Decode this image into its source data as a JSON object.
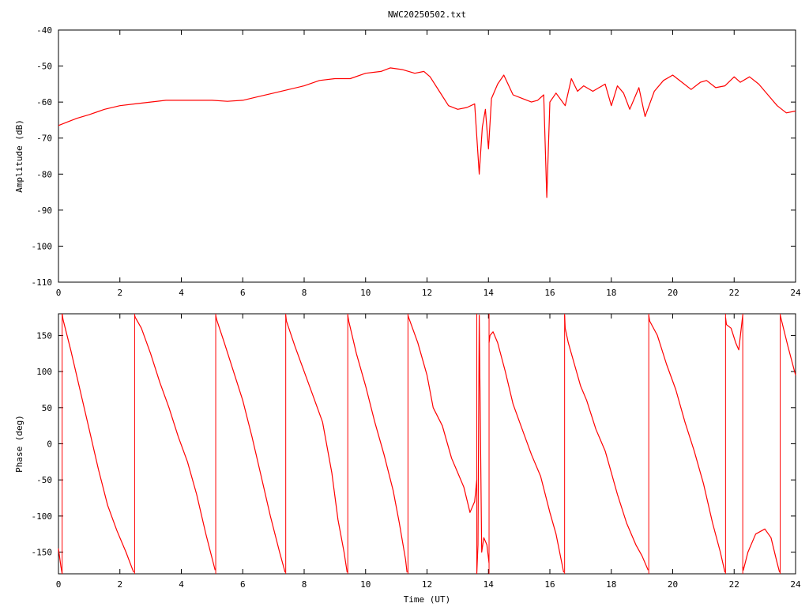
{
  "chart_data": [
    {
      "type": "line",
      "title": "NWC20250502.txt",
      "xlabel": "",
      "ylabel": "Amplitude (dB)",
      "xlim": [
        0,
        24
      ],
      "ylim": [
        -110,
        -40
      ],
      "x_ticks": [
        "0",
        "2",
        "4",
        "6",
        "8",
        "10",
        "12",
        "14",
        "16",
        "18",
        "20",
        "22",
        "24"
      ],
      "y_ticks": [
        "-40",
        "-50",
        "-60",
        "-70",
        "-80",
        "-90",
        "-100",
        "-110"
      ],
      "color": "#ff0000",
      "series": [
        {
          "x": [
            0,
            0.3,
            0.6,
            1.0,
            1.5,
            2.0,
            2.5,
            3.0,
            3.5,
            4.0,
            4.5,
            5.0,
            5.5,
            6.0,
            6.5,
            7.0,
            7.5,
            8.0,
            8.5,
            9.0,
            9.5,
            10.0,
            10.5,
            10.8,
            11.2,
            11.6,
            11.9,
            12.1,
            12.4,
            12.7,
            13.0,
            13.3,
            13.55,
            13.7,
            13.8,
            13.9,
            14.0,
            14.1,
            14.3,
            14.5,
            14.8,
            15.1,
            15.4,
            15.6,
            15.8,
            15.9,
            16.0,
            16.2,
            16.5,
            16.7,
            16.9,
            17.1,
            17.4,
            17.6,
            17.8,
            18.0,
            18.2,
            18.4,
            18.6,
            18.9,
            19.1,
            19.4,
            19.7,
            20.0,
            20.3,
            20.6,
            20.9,
            21.1,
            21.4,
            21.7,
            22.0,
            22.2,
            22.5,
            22.8,
            23.1,
            23.4,
            23.7,
            24.0
          ],
          "y": [
            -66.5,
            -65.5,
            -64.5,
            -63.5,
            -62,
            -61,
            -60.5,
            -60,
            -59.5,
            -59.5,
            -59.5,
            -59.5,
            -59.8,
            -59.5,
            -58.5,
            -57.5,
            -56.5,
            -55.5,
            -54,
            -53.5,
            -53.5,
            -52,
            -51.5,
            -50.5,
            -51,
            -52,
            -51.5,
            -53,
            -57,
            -61,
            -62,
            -61.5,
            -60.5,
            -80,
            -67,
            -62,
            -73,
            -59,
            -55,
            -52.5,
            -58,
            -59,
            -60,
            -59.5,
            -58,
            -86.5,
            -60,
            -57.5,
            -61,
            -53.5,
            -57,
            -55.5,
            -57,
            -56,
            -55,
            -61,
            -55.5,
            -57.5,
            -62,
            -56,
            -64,
            -57,
            -54,
            -52.5,
            -54.5,
            -56.5,
            -54.5,
            -54,
            -56,
            -55.5,
            -53,
            -54.5,
            -53,
            -55,
            -58,
            -61,
            -63,
            -62.5
          ]
        }
      ]
    },
    {
      "type": "line",
      "title": "",
      "xlabel": "Time (UT)",
      "ylabel": "Phase (deg)",
      "xlim": [
        0,
        24
      ],
      "ylim": [
        -180,
        180
      ],
      "x_ticks": [
        "0",
        "2",
        "4",
        "6",
        "8",
        "10",
        "12",
        "14",
        "16",
        "18",
        "20",
        "22",
        "24"
      ],
      "y_ticks": [
        "150",
        "100",
        "50",
        "0",
        "-50",
        "-100",
        "-150"
      ],
      "color": "#ff0000",
      "series": [
        {
          "x": [
            0.0,
            0.08,
            0.12
          ],
          "y": [
            -145,
            -170,
            -180
          ]
        },
        {
          "x": [
            0.12,
            0.15,
            0.4,
            0.7,
            1.0,
            1.3,
            1.6,
            1.9,
            2.2,
            2.45
          ],
          "y": [
            180,
            172,
            130,
            75,
            20,
            -35,
            -85,
            -120,
            -150,
            -178
          ]
        },
        {
          "x": [
            2.48,
            2.5,
            2.7,
            3.0,
            3.3,
            3.6,
            3.9,
            4.2,
            4.5,
            4.8,
            5.1
          ],
          "y": [
            178,
            175,
            160,
            125,
            85,
            50,
            10,
            -25,
            -70,
            -125,
            -175
          ]
        },
        {
          "x": [
            5.12,
            5.15,
            5.4,
            5.7,
            6.0,
            6.3,
            6.6,
            6.9,
            7.2,
            7.38
          ],
          "y": [
            178,
            172,
            140,
            100,
            60,
            10,
            -45,
            -100,
            -150,
            -178
          ]
        },
        {
          "x": [
            7.4,
            7.42,
            7.7,
            8.0,
            8.3,
            8.6,
            8.9,
            9.1,
            9.3,
            9.4
          ],
          "y": [
            178,
            170,
            135,
            100,
            65,
            30,
            -40,
            -105,
            -150,
            -178
          ]
        },
        {
          "x": [
            9.42,
            9.45,
            9.7,
            10.0,
            10.3,
            10.6,
            10.9,
            11.1,
            11.3,
            11.35
          ],
          "y": [
            178,
            170,
            125,
            80,
            30,
            -15,
            -65,
            -110,
            -160,
            -178
          ]
        },
        {
          "x": [
            11.38,
            11.4,
            11.7,
            12.0,
            12.2,
            12.5,
            12.8,
            13.0,
            13.2,
            13.4,
            13.55,
            13.62
          ],
          "y": [
            178,
            175,
            140,
            95,
            50,
            25,
            -20,
            -40,
            -60,
            -95,
            -80,
            -50
          ]
        },
        {
          "x": [
            13.62,
            13.66,
            13.7,
            13.78,
            13.85,
            13.95,
            14.02
          ],
          "y": [
            -180,
            -140,
            178,
            -150,
            -130,
            -140,
            -165
          ]
        },
        {
          "x": [
            14.02,
            14.05,
            14.15,
            14.3,
            14.55,
            14.8,
            15.1,
            15.4,
            15.7,
            16.0,
            16.2,
            16.45
          ],
          "y": [
            140,
            150,
            155,
            140,
            100,
            55,
            20,
            -15,
            -45,
            -95,
            -125,
            -178
          ]
        },
        {
          "x": [
            16.48,
            16.5,
            16.6,
            16.8,
            17.0,
            17.2,
            17.5,
            17.8,
            18.0,
            18.2,
            18.5,
            18.8,
            19.0,
            19.2
          ],
          "y": [
            178,
            160,
            140,
            110,
            80,
            60,
            20,
            -10,
            -40,
            -70,
            -110,
            -140,
            -155,
            -175
          ]
        },
        {
          "x": [
            19.22,
            19.25,
            19.5,
            19.8,
            20.1,
            20.4,
            20.7,
            21.0,
            21.3,
            21.55,
            21.7
          ],
          "y": [
            178,
            170,
            150,
            110,
            75,
            30,
            -10,
            -55,
            -110,
            -150,
            -178
          ]
        },
        {
          "x": [
            21.72,
            21.75,
            21.9,
            22.05,
            22.15,
            22.28
          ],
          "y": [
            175,
            165,
            160,
            140,
            130,
            178
          ]
        },
        {
          "x": [
            22.28,
            22.3,
            22.45,
            22.7,
            23.0,
            23.2,
            23.4,
            23.48
          ],
          "y": [
            -170,
            -175,
            -150,
            -125,
            -118,
            -130,
            -165,
            -178
          ]
        },
        {
          "x": [
            23.5,
            23.52,
            23.75,
            24.0
          ],
          "y": [
            178,
            175,
            135,
            95
          ]
        }
      ]
    }
  ]
}
